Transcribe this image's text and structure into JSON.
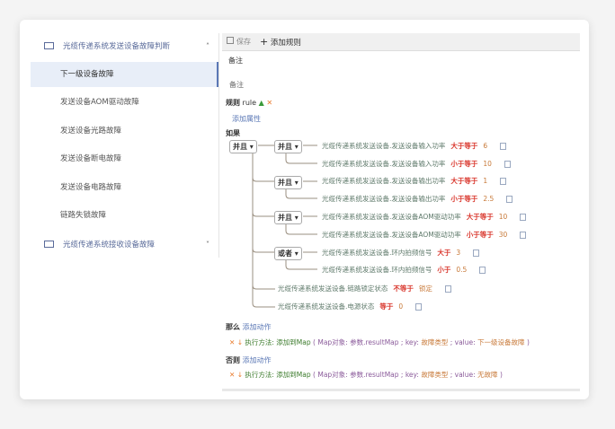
{
  "sidebar": {
    "group1": {
      "label": "光缆传递系统发送设备故障判断",
      "icon": "mail-icon",
      "chevron": "chevron-up-icon"
    },
    "items": [
      {
        "label": "下一级设备故障",
        "selected": true
      },
      {
        "label": "发送设备AOM驱动故障"
      },
      {
        "label": "发送设备光路故障"
      },
      {
        "label": "发送设备断电故障"
      },
      {
        "label": "发送设备电路故障"
      },
      {
        "label": "链路失锁故障"
      }
    ],
    "group2": {
      "label": "光缆传递系统接收设备故障",
      "icon": "mail-icon",
      "chevron": "chevron-down-icon"
    }
  },
  "toolbar": {
    "save": "保存",
    "add_rule": "添加规则"
  },
  "remark_label": "备注",
  "remark_value": "备注",
  "rule": {
    "label": "规则",
    "name": "rule",
    "add_attr": "添加属性",
    "if": "如果",
    "root": "并且",
    "groups": [
      "并且",
      "并且",
      "并且",
      "或者"
    ],
    "conditions": [
      {
        "field": "光缆传递系统发送设备.发送设备输入功率",
        "op": "大于等于",
        "value": "6"
      },
      {
        "field": "光缆传递系统发送设备.发送设备输入功率",
        "op": "小于等于",
        "value": "10"
      },
      {
        "field": "光缆传递系统发送设备.发送设备输出功率",
        "op": "大于等于",
        "value": "1"
      },
      {
        "field": "光缆传递系统发送设备.发送设备输出功率",
        "op": "小于等于",
        "value": "2.5"
      },
      {
        "field": "光缆传递系统发送设备.发送设备AOM驱动功率",
        "op": "大于等于",
        "value": "10"
      },
      {
        "field": "光缆传递系统发送设备.发送设备AOM驱动功率",
        "op": "小于等于",
        "value": "30"
      },
      {
        "field": "光缆传递系统发送设备.环内拍频信号",
        "op": "大于",
        "value": "3"
      },
      {
        "field": "光缆传递系统发送设备.环内拍频信号",
        "op": "小于",
        "value": "0.5"
      },
      {
        "field": "光缆传递系统发送设备.链路锁定状态",
        "op": "不等于",
        "value": "锁定"
      },
      {
        "field": "光缆传递系统发送设备.电源状态",
        "op": "等于",
        "value": "0"
      }
    ],
    "then": {
      "label": "那么",
      "add": "添加动作",
      "method": "执行方法: 添加到Map",
      "open": "(",
      "map_label": "Map对象:",
      "map_value": "参数.resultMap",
      "key_label": "; key:",
      "key_value": "故障类型",
      "value_label": "; value:",
      "value_value": "下一级设备故障",
      "close": ")"
    },
    "else": {
      "label": "否则",
      "add": "添加动作",
      "method": "执行方法: 添加到Map",
      "open": "(",
      "map_label": "Map对象:",
      "map_value": "参数.resultMap",
      "key_label": "; key:",
      "key_value": "故障类型",
      "value_label": "; value:",
      "value_value": "无故障",
      "close": ")"
    }
  }
}
